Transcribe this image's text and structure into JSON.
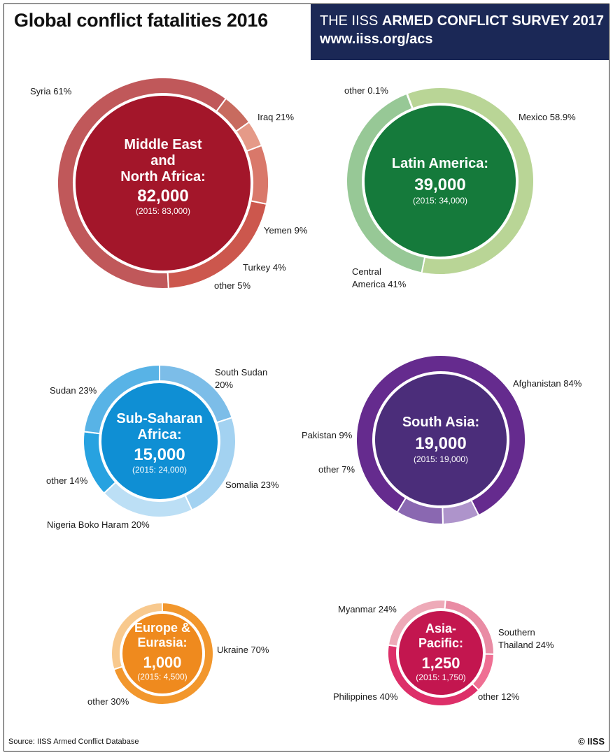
{
  "header": {
    "title": "Global conflict fatalities 2016",
    "banner_prefix": "THE IISS ",
    "banner_bold": "ARMED CONFLICT SURVEY 2017",
    "banner_url": "www.iiss.org/acs"
  },
  "footer": {
    "source": "Source: IISS Armed Conflict Database",
    "copyright": "© IISS"
  },
  "chart_data": {
    "type": "pie",
    "title": "Global conflict fatalities 2016",
    "regions": [
      {
        "name": "Middle East and North Africa",
        "title_lines": [
          "Middle East",
          "and",
          "North Africa:"
        ],
        "total": 82000,
        "total_label": "82,000",
        "prior": 83000,
        "prior_label": "(2015: 83,000)",
        "color": "#a3162a",
        "segments": [
          {
            "name": "Syria",
            "value": 61,
            "label": "Syria 61%",
            "color": "#c0585a"
          },
          {
            "name": "Iraq",
            "value": 21,
            "label": "Iraq 21%",
            "color": "#cc574d"
          },
          {
            "name": "Yemen",
            "value": 9,
            "label": "Yemen 9%",
            "color": "#d9786a"
          },
          {
            "name": "Turkey",
            "value": 4,
            "label": "Turkey 4%",
            "color": "#e59a88"
          },
          {
            "name": "other",
            "value": 5,
            "label": "other 5%",
            "color": "#c86b5f"
          }
        ]
      },
      {
        "name": "Latin America",
        "title_lines": [
          "Latin America:"
        ],
        "total": 39000,
        "total_label": "39,000",
        "prior": 34000,
        "prior_label": "(2015: 34,000)",
        "color": "#157a3b",
        "segments": [
          {
            "name": "other",
            "value": 0.1,
            "label": "other 0.1%",
            "color": "#9fcc9f"
          },
          {
            "name": "Mexico",
            "value": 58.9,
            "label": "Mexico 58.9%",
            "color": "#b9d596"
          },
          {
            "name": "Central America",
            "value": 41,
            "label": "Central America 41%",
            "color": "#97c896"
          }
        ]
      },
      {
        "name": "Sub-Saharan Africa",
        "title_lines": [
          "Sub-Saharan",
          "Africa:"
        ],
        "total": 15000,
        "total_label": "15,000",
        "prior": 24000,
        "prior_label": "(2015: 24,000)",
        "color": "#0f8fd4",
        "segments": [
          {
            "name": "South Sudan",
            "value": 20,
            "label": "South Sudan 20%",
            "color": "#7cbde8"
          },
          {
            "name": "Somalia",
            "value": 23,
            "label": "Somalia 23%",
            "color": "#a3d2f1"
          },
          {
            "name": "Nigeria Boko Haram",
            "value": 20,
            "label": "Nigeria Boko Haram 20%",
            "color": "#bcdff5"
          },
          {
            "name": "other",
            "value": 14,
            "label": "other 14%",
            "color": "#27a2e0"
          },
          {
            "name": "Sudan",
            "value": 23,
            "label": "Sudan 23%",
            "color": "#58b3e6"
          }
        ]
      },
      {
        "name": "South Asia",
        "title_lines": [
          "South Asia:"
        ],
        "total": 19000,
        "total_label": "19,000",
        "prior": 19000,
        "prior_label": "(2015: 19,000)",
        "color": "#4b2d7a",
        "segments": [
          {
            "name": "Afghanistan",
            "value": 84,
            "label": "Afghanistan 84%",
            "color": "#652b8e"
          },
          {
            "name": "other",
            "value": 7,
            "label": "other 7%",
            "color": "#ae94cb"
          },
          {
            "name": "Pakistan",
            "value": 9,
            "label": "Pakistan 9%",
            "color": "#8a68b1"
          }
        ]
      },
      {
        "name": "Europe & Eurasia",
        "title_lines": [
          "Europe &",
          "Eurasia:"
        ],
        "total": 1000,
        "total_label": "1,000",
        "prior": 4500,
        "prior_label": "(2015: 4,500)",
        "color": "#ef8a1e",
        "segments": [
          {
            "name": "Ukraine",
            "value": 70,
            "label": "Ukraine 70%",
            "color": "#f2972d"
          },
          {
            "name": "other",
            "value": 30,
            "label": "other 30%",
            "color": "#f8c98e"
          }
        ]
      },
      {
        "name": "Asia-Pacific",
        "title_lines": [
          "Asia-",
          "Pacific:"
        ],
        "total": 1250,
        "total_label": "1,250",
        "prior": 1750,
        "prior_label": "(2015: 1,750)",
        "color": "#c3164f",
        "segments": [
          {
            "name": "Southern Thailand",
            "value": 24,
            "label": "Southern Thailand 24%",
            "color": "#e98ca4"
          },
          {
            "name": "other",
            "value": 12,
            "label": "other 12%",
            "color": "#ef6f93"
          },
          {
            "name": "Philippines",
            "value": 40,
            "label": "Philippines 40%",
            "color": "#dd2f69"
          },
          {
            "name": "Myanmar",
            "value": 24,
            "label": "Myanmar 24%",
            "color": "#eeaab8"
          }
        ]
      }
    ]
  }
}
